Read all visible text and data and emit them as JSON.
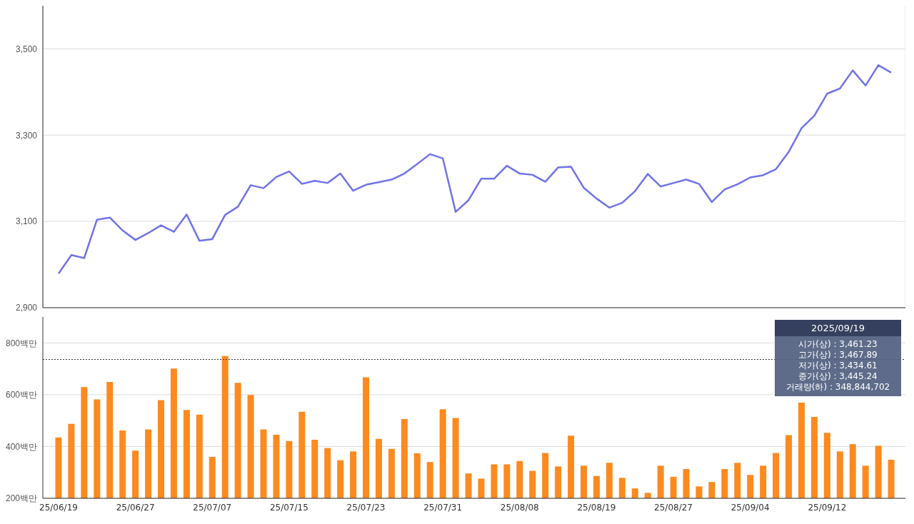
{
  "chart_data": [
    {
      "type": "line",
      "categories": [
        null,
        null,
        null,
        null,
        null,
        null,
        null,
        null,
        null,
        null,
        null,
        null,
        null,
        null,
        null,
        null,
        null,
        null,
        null,
        null,
        null,
        null,
        null,
        null,
        null,
        null,
        null,
        null,
        null,
        null,
        null,
        null,
        null,
        null,
        null,
        null,
        null,
        null,
        null,
        null,
        null,
        null,
        null,
        null,
        null,
        null,
        null,
        null,
        null,
        null,
        null,
        null,
        null,
        null,
        null,
        null,
        null,
        null,
        null,
        null,
        null,
        null,
        null,
        null,
        null,
        null
      ],
      "series": [
        {
          "color": "#7073e8",
          "values": [
            2979,
            3022,
            3015,
            3104,
            3109,
            3079,
            3057,
            3073,
            3091,
            3076,
            3116,
            3055,
            3059,
            3115,
            3134,
            3184,
            3177,
            3203,
            3216,
            3187,
            3194,
            3189,
            3211,
            3171,
            3185,
            3191,
            3197,
            3211,
            3233,
            3256,
            3246,
            3122,
            3149,
            3199,
            3199,
            3229,
            3211,
            3208,
            3192,
            3225,
            3227,
            3178,
            3153,
            3132,
            3143,
            3170,
            3210,
            3181,
            3189,
            3197,
            3187,
            3145,
            3174,
            3186,
            3202,
            3207,
            3221,
            3261,
            3316,
            3345,
            3396,
            3408,
            3450,
            3415,
            3462,
            3445
          ]
        }
      ],
      "ylim": [
        2900,
        3600
      ],
      "yticks": [
        {
          "value": 2900,
          "label": "2,900"
        },
        {
          "value": 3100,
          "label": "3,100"
        },
        {
          "value": 3300,
          "label": "3,300"
        },
        {
          "value": 3500,
          "label": "3,500"
        }
      ],
      "grid": true,
      "marker": "none",
      "line_style": "solid",
      "tick_labels": "y"
    },
    {
      "type": "bar",
      "categories": [
        "25/06/19",
        null,
        null,
        null,
        null,
        null,
        "25/06/27",
        null,
        null,
        null,
        null,
        null,
        "25/07/07",
        null,
        null,
        null,
        null,
        null,
        "25/07/15",
        null,
        null,
        null,
        null,
        null,
        "25/07/23",
        null,
        null,
        null,
        null,
        null,
        "25/07/31",
        null,
        null,
        null,
        null,
        null,
        "25/08/08",
        null,
        null,
        null,
        null,
        null,
        "25/08/19",
        null,
        null,
        null,
        null,
        null,
        "25/08/27",
        null,
        null,
        null,
        null,
        null,
        "25/09/04",
        null,
        null,
        null,
        null,
        null,
        "25/09/12",
        null,
        null,
        null,
        null,
        null
      ],
      "series": [
        {
          "color": "#fc8a1f",
          "values": [
            435,
            487,
            629,
            582,
            649,
            462,
            384,
            466,
            579,
            701,
            541,
            523,
            360,
            749,
            646,
            599,
            466,
            445,
            421,
            534,
            426,
            394,
            347,
            381,
            667,
            429,
            391,
            506,
            374,
            340,
            544,
            510,
            296,
            276,
            331,
            331,
            344,
            306,
            375,
            323,
            442,
            326,
            286,
            337,
            279,
            238,
            221,
            326,
            283,
            313,
            246,
            263,
            313,
            337,
            290,
            326,
            375,
            444,
            569,
            514,
            453,
            381,
            409,
            326,
            403,
            349
          ]
        }
      ],
      "ylim": [
        200,
        900
      ],
      "yticks": [
        {
          "value": 200,
          "label": "200백만"
        },
        {
          "value": 400,
          "label": "400백만"
        },
        {
          "value": 600,
          "label": "600백만"
        },
        {
          "value": 800,
          "label": "800백만"
        }
      ],
      "grid": "y",
      "ref_lines": [
        {
          "axis": "y",
          "value": 736,
          "color": "#333333",
          "line_style": "dotted"
        }
      ],
      "annotations": [
        "2025/09/19",
        "시가(상) : 3,461.23",
        "고가(상) : 3,467.89",
        "저가(상) : 3,434.61",
        "종가(상) : 3,445.24",
        "거래량(하) : 348,844,702"
      ]
    }
  ]
}
